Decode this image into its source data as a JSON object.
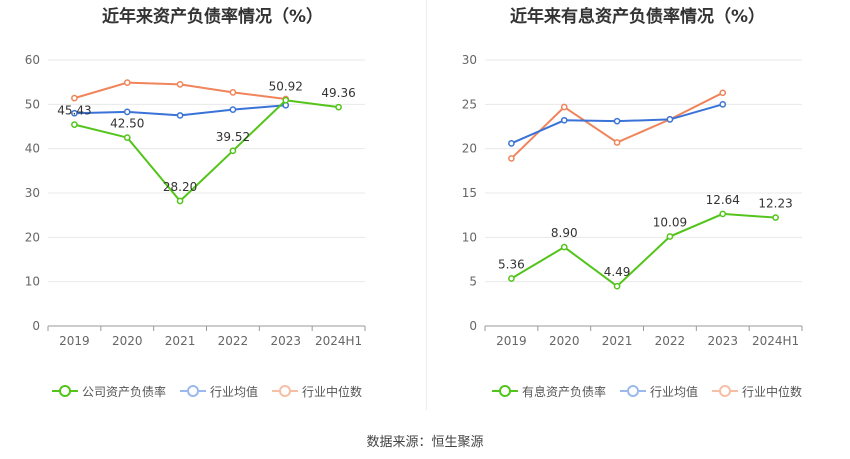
{
  "source": "数据来源：恒生聚源",
  "colors": {
    "company": "#52c41a",
    "industry_avg": "#3a73d8",
    "industry_median": "#f0845a",
    "grid": "#e8e8e8",
    "axis": "#999999"
  },
  "chart_data": [
    {
      "type": "line",
      "title": "近年来资产负债率情况（%）",
      "categories": [
        "2019",
        "2020",
        "2021",
        "2022",
        "2023",
        "2024H1"
      ],
      "ylim": [
        0,
        60
      ],
      "yticks": [
        0,
        10,
        20,
        30,
        40,
        50,
        60
      ],
      "grid": true,
      "legend_position": "bottom-left",
      "series": [
        {
          "key": "company",
          "name": "公司资产负债率",
          "color": "#52c41a",
          "values": [
            45.43,
            42.5,
            28.2,
            39.52,
            50.92,
            49.36
          ],
          "labels": [
            "45.43",
            "42.50",
            "28.20",
            "39.52",
            "50.92",
            "49.36"
          ]
        },
        {
          "key": "industry_avg",
          "name": "行业均值",
          "color": "#3a73d8",
          "values": [
            48.0,
            48.3,
            47.5,
            48.8,
            49.8,
            null
          ]
        },
        {
          "key": "industry_median",
          "name": "行业中位数",
          "color": "#f0845a",
          "values": [
            51.4,
            54.9,
            54.5,
            52.7,
            51.2,
            null
          ]
        }
      ]
    },
    {
      "type": "line",
      "title": "近年来有息资产负债率情况（%）",
      "categories": [
        "2019",
        "2020",
        "2021",
        "2022",
        "2023",
        "2024H1"
      ],
      "ylim": [
        0,
        30
      ],
      "yticks": [
        0,
        5,
        10,
        15,
        20,
        25,
        30
      ],
      "grid": true,
      "legend_position": "bottom-left",
      "series": [
        {
          "key": "company",
          "name": "有息资产负债率",
          "color": "#52c41a",
          "values": [
            5.36,
            8.9,
            4.49,
            10.09,
            12.64,
            12.23
          ],
          "labels": [
            "5.36",
            "8.90",
            "4.49",
            "10.09",
            "12.64",
            "12.23"
          ]
        },
        {
          "key": "industry_avg",
          "name": "行业均值",
          "color": "#3a73d8",
          "values": [
            20.6,
            23.2,
            23.1,
            23.3,
            25.0,
            null
          ]
        },
        {
          "key": "industry_median",
          "name": "行业中位数",
          "color": "#f0845a",
          "values": [
            18.9,
            24.7,
            20.7,
            23.3,
            26.3,
            null
          ]
        }
      ]
    }
  ]
}
